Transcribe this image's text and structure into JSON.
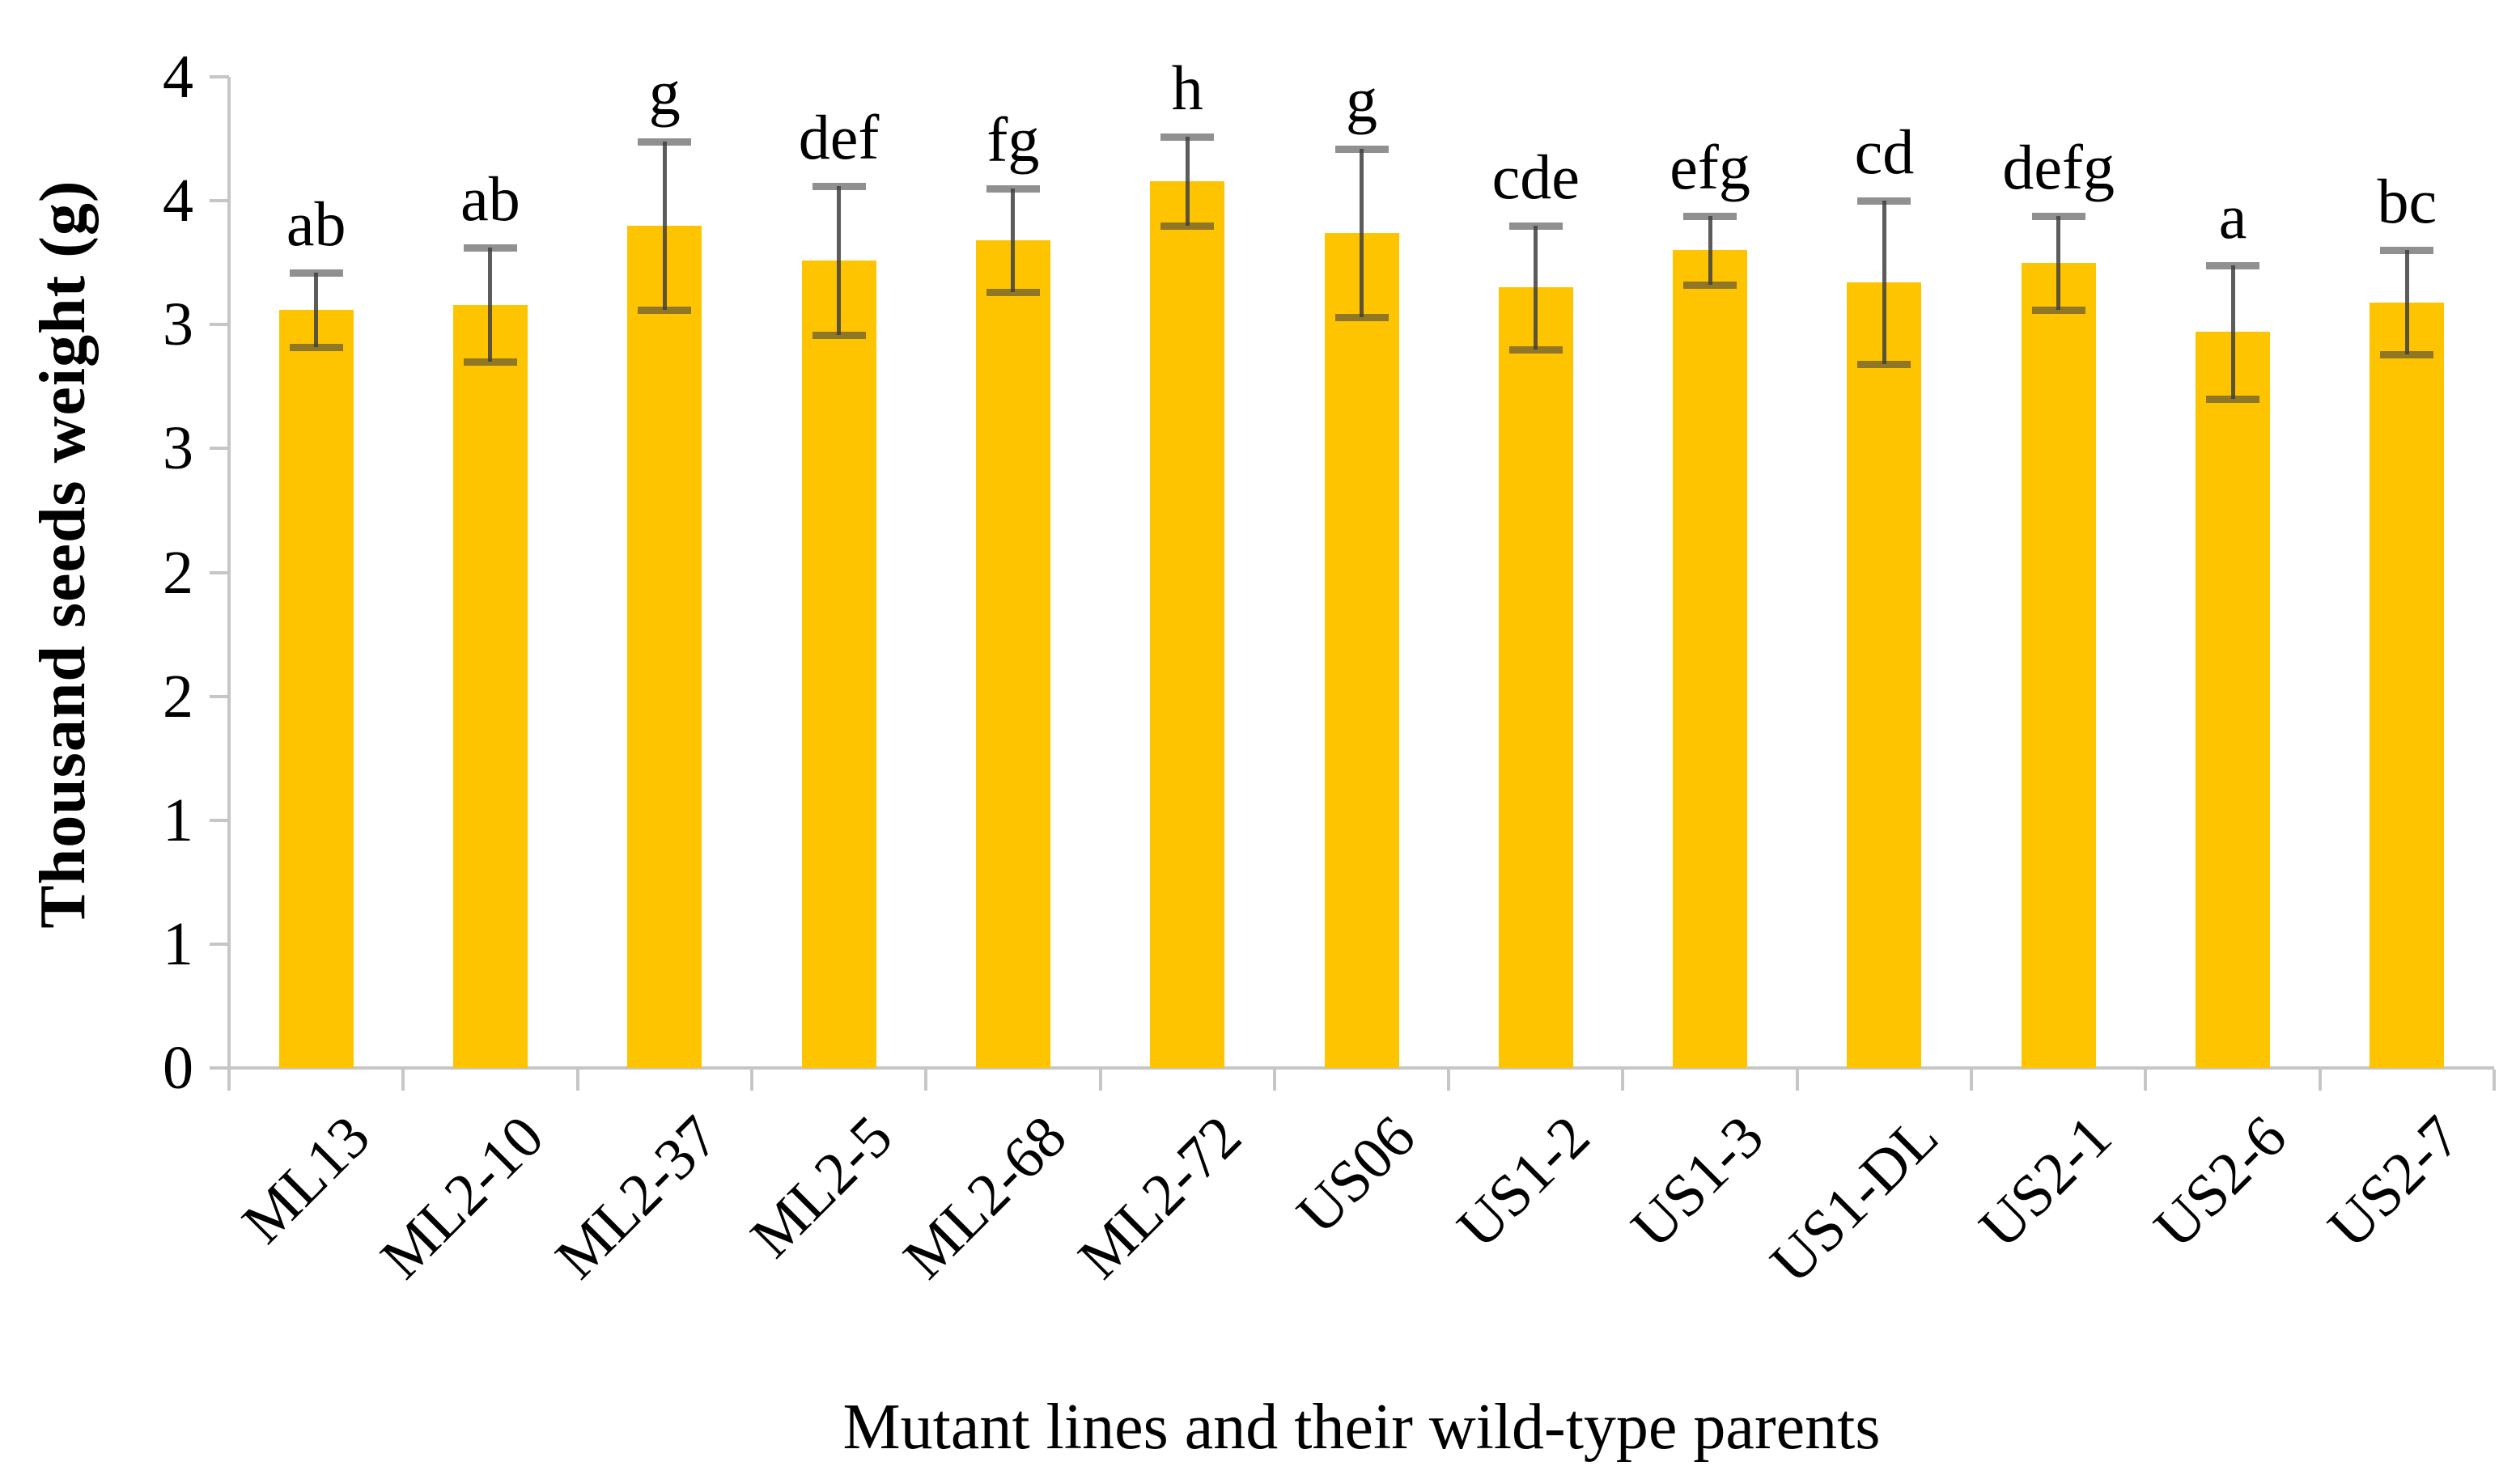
{
  "figure": {
    "y_axis_title": "Thousand seeds weight (g)",
    "x_axis_title": "Mutant lines and their wild-type parents"
  },
  "chart_data": {
    "type": "bar",
    "title": "",
    "xlabel": "Mutant lines and their wild-type parents",
    "ylabel": "Thousand seeds weight (g)",
    "ylim": [
      0,
      4
    ],
    "y_tick_step": 0.5,
    "y_tick_labels_top_to_bottom": [
      "4",
      "4",
      "3",
      "3",
      "2",
      "2",
      "1",
      "1",
      "0"
    ],
    "grid": "off",
    "legend": "none",
    "categories": [
      "ML13",
      "ML2-10",
      "ML2-37",
      "ML2-5",
      "ML2-68",
      "ML2-72",
      "US06",
      "US1-2",
      "US1-3",
      "US1-DL",
      "US2-1",
      "US2-6",
      "US2-7"
    ],
    "series": [
      {
        "name": "Thousand seeds weight",
        "values": [
          3.06,
          3.08,
          3.4,
          3.26,
          3.34,
          3.58,
          3.37,
          3.15,
          3.3,
          3.17,
          3.25,
          2.97,
          3.09
        ],
        "error_low": [
          2.91,
          2.85,
          3.06,
          2.96,
          3.13,
          3.4,
          3.03,
          2.9,
          3.16,
          2.84,
          3.06,
          2.7,
          2.88
        ],
        "error_high": [
          3.21,
          3.31,
          3.74,
          3.56,
          3.55,
          3.76,
          3.71,
          3.4,
          3.44,
          3.5,
          3.44,
          3.24,
          3.3
        ]
      }
    ],
    "significance_letters": [
      "ab",
      "ab",
      "g",
      "def",
      "fg",
      "h",
      "g",
      "cde",
      "efg",
      "cd",
      "defg",
      "a",
      "bc"
    ],
    "colors": {
      "bar_fill": "#FFC400",
      "error_bar": "#404040",
      "axis_line": "#C6C6C6",
      "text": "#000000"
    }
  }
}
